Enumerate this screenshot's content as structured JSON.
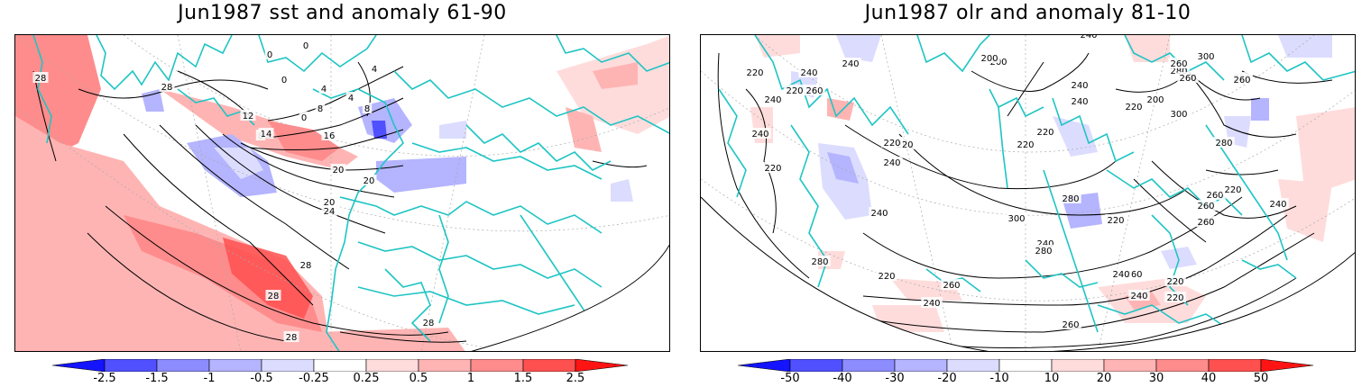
{
  "left_panel": {
    "title": "Jun1987 sst and anomaly 61-90",
    "colorbar_ticks": [
      "-2.5",
      "-1.5",
      "-1",
      "-0.5",
      "-0.25",
      "0.25",
      "0.5",
      "1",
      "1.5",
      "2.5"
    ],
    "contour_labels": [
      "28",
      "28",
      "0",
      "0",
      "0",
      "0",
      "4",
      "4",
      "4",
      "8",
      "8",
      "8",
      "12",
      "14",
      "16",
      "20",
      "20",
      "20",
      "24",
      "28",
      "28",
      "28",
      "28"
    ]
  },
  "right_panel": {
    "title": "Jun1987 olr and anomaly 81-10",
    "colorbar_ticks": [
      "-50",
      "-40",
      "-30",
      "-20",
      "-10",
      "10",
      "20",
      "30",
      "40",
      "50"
    ],
    "contour_labels": [
      "240",
      "220",
      "240",
      "240",
      "200",
      "240",
      "240",
      "220",
      "260",
      "260",
      "240",
      "220",
      "220",
      "220",
      "240",
      "220",
      "220",
      "200",
      "240",
      "280",
      "260",
      "300",
      "200",
      "220",
      "240",
      "260",
      "300",
      "280",
      "260",
      "280",
      "280",
      "300",
      "220",
      "260",
      "240",
      "220",
      "240",
      "260",
      "260",
      "280",
      "260",
      "240",
      "220",
      "220",
      "220",
      "240",
      "240",
      "260",
      "260",
      "280"
    ]
  },
  "colors": {
    "coastline": "#1fc4c4",
    "neg_levels": [
      "#1414ff",
      "#5050ff",
      "#8c8cff",
      "#b4b4ff",
      "#dcdcff"
    ],
    "pos_levels": [
      "#ffdcdc",
      "#ffb4b4",
      "#ff8c8c",
      "#ff5050",
      "#ff1414"
    ]
  }
}
